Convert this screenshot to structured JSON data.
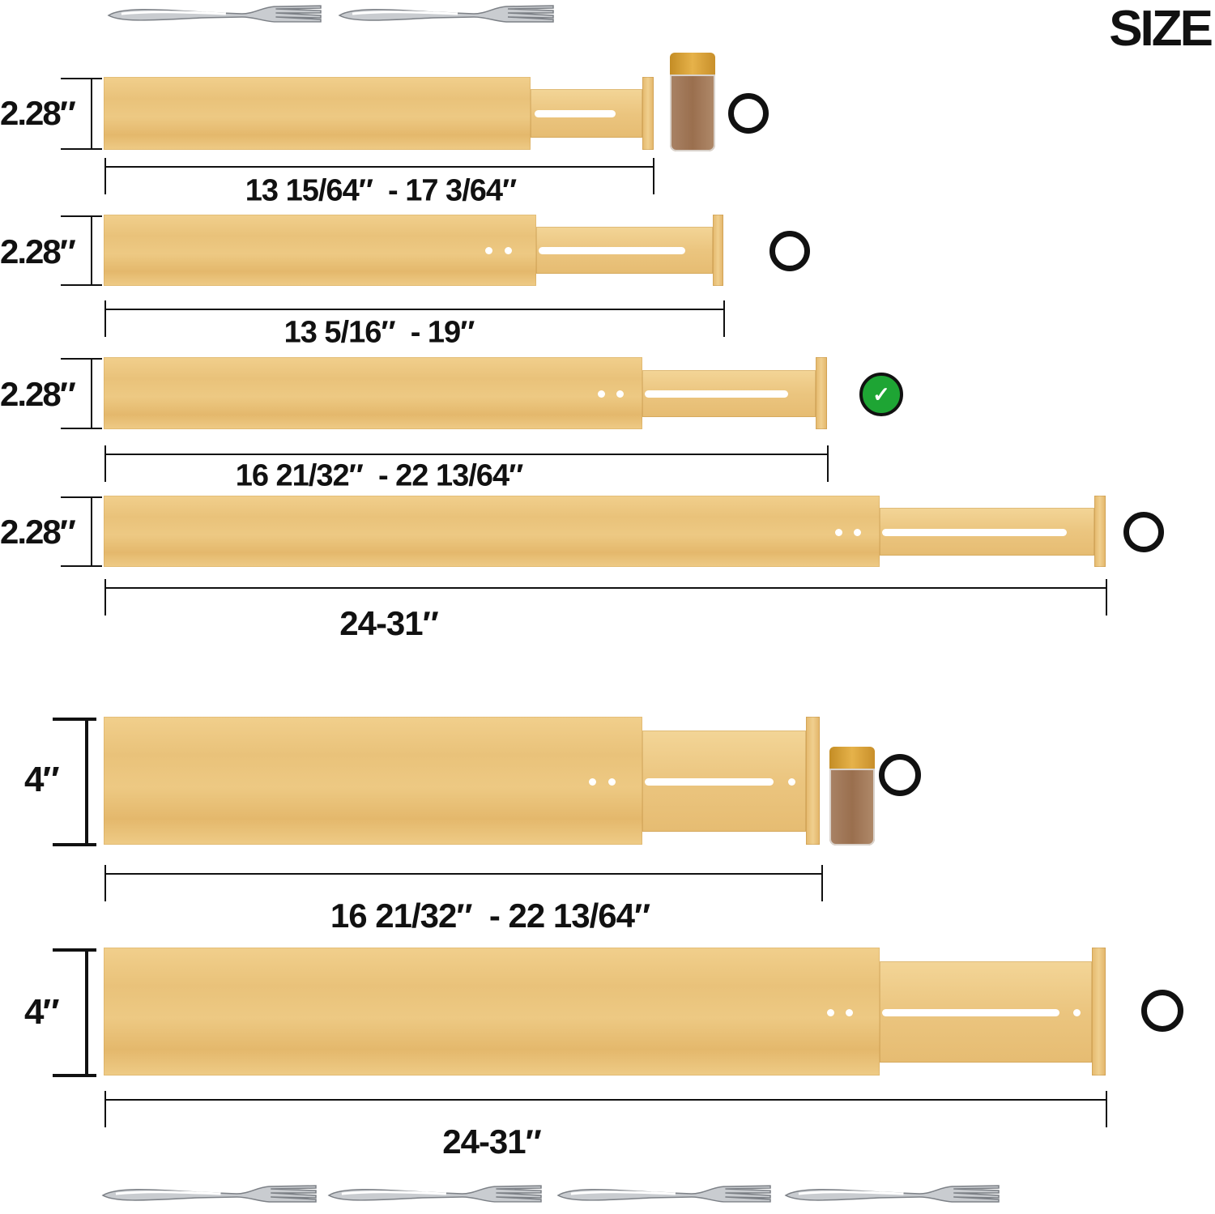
{
  "title": "SIZE",
  "rows": [
    {
      "height": "2.28″",
      "length": "13 15/64″  - 17 3/64″",
      "selected": false,
      "icon": "ring-icon"
    },
    {
      "height": "2.28″",
      "length": "13 5/16″  - 19″",
      "selected": false,
      "icon": "ring-icon"
    },
    {
      "height": "2.28″",
      "length": "16 21/32″  - 22 13/64″",
      "selected": true,
      "icon": "check-circle-icon",
      "color": "#1ea534"
    },
    {
      "height": "2.28″",
      "length": "24-31″",
      "selected": false,
      "icon": "ring-icon"
    },
    {
      "height": "4″",
      "length": "16 21/32″  - 22 13/64″",
      "selected": false,
      "icon": "ring-icon"
    },
    {
      "height": "4″",
      "length": "24-31″",
      "selected": false,
      "icon": "ring-icon"
    }
  ],
  "check_glyph": "✓",
  "colors": {
    "bamboo": "#ebc57f",
    "text": "#111111",
    "check": "#1ea534"
  }
}
